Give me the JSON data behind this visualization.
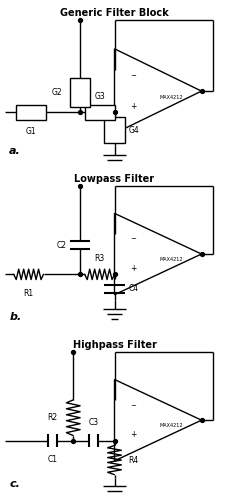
{
  "title_a": "Generic Filter Block",
  "title_b": "Lowpass Filter",
  "title_c": "Highpass Filter",
  "label_a": "a.",
  "label_b": "b.",
  "label_c": "c.",
  "chip_label": "MAX4212",
  "figsize": [
    2.29,
    4.96
  ],
  "dpi": 100
}
